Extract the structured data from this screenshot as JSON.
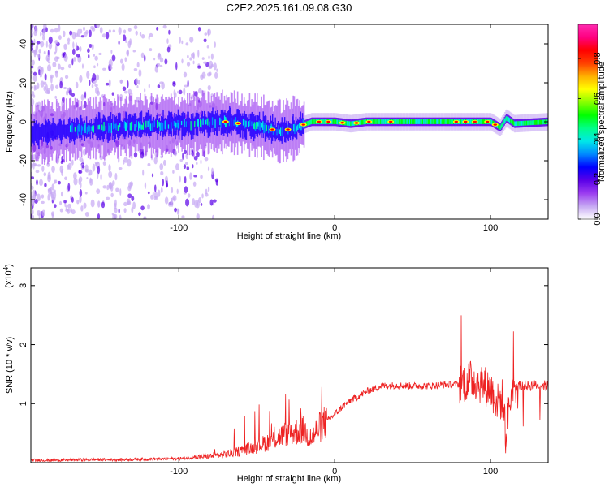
{
  "title": "C2E2.2025.161.09.08.G30",
  "chart_data": [
    {
      "type": "heatmap",
      "xlabel": "Height of straight line (km)",
      "ylabel": "Frequency (Hz)",
      "xlim": [
        -195,
        137
      ],
      "ylim": [
        -50,
        50
      ],
      "x_ticks": [
        {
          "value": -100,
          "label": "-100"
        },
        {
          "value": 0,
          "label": "0"
        },
        {
          "value": 100,
          "label": "100"
        }
      ],
      "y_ticks": [
        {
          "value": 40,
          "label": "40"
        },
        {
          "value": 20,
          "label": "20"
        },
        {
          "value": 0,
          "label": "0"
        },
        {
          "value": -20,
          "label": "-20"
        },
        {
          "value": -40,
          "label": "-40"
        }
      ],
      "colorbar": {
        "label": "Normalized spectral amplitude",
        "range": [
          0,
          0.97
        ],
        "ticks": [
          {
            "value": 0.0,
            "label": "0.0"
          },
          {
            "value": 0.2,
            "label": "0.2"
          },
          {
            "value": 0.4,
            "label": "0.4"
          },
          {
            "value": 0.6,
            "label": "0.6"
          },
          {
            "value": 0.8,
            "label": "0.8"
          }
        ],
        "colors": [
          "#ffffff",
          "#c6a8f3",
          "#9b3cf0",
          "#5a00e8",
          "#0000ff",
          "#0088ff",
          "#00e8e8",
          "#00ff88",
          "#00ff00",
          "#88ff00",
          "#ffff00",
          "#ffb000",
          "#ff4000",
          "#ff0000",
          "#ff0080",
          "#ff2bb0"
        ]
      },
      "ridge": {
        "x": [
          -195,
          -170,
          -150,
          -130,
          -110,
          -90,
          -70,
          -50,
          -35,
          -25,
          -15,
          -5,
          0,
          10,
          20,
          40,
          60,
          80,
          100,
          106,
          110,
          115,
          137
        ],
        "frequency": [
          -6,
          -4,
          -3,
          -2,
          -2,
          -1,
          0,
          -2,
          -5,
          -3,
          0,
          0,
          0,
          -1,
          0,
          0,
          0,
          0,
          0,
          -3,
          2,
          -1,
          0
        ]
      }
    },
    {
      "type": "line",
      "xlabel": "Height of straight line (km)",
      "ylabel": "SNR (10 * v/v)",
      "y_multiplier": "(x10^4)",
      "xlim": [
        -195,
        137
      ],
      "ylim": [
        0,
        3.3
      ],
      "x_ticks": [
        {
          "value": -100,
          "label": "-100"
        },
        {
          "value": 0,
          "label": "0"
        },
        {
          "value": 100,
          "label": "100"
        }
      ],
      "y_ticks": [
        {
          "value": 1,
          "label": "1"
        },
        {
          "value": 2,
          "label": "2"
        },
        {
          "value": 3,
          "label": "3"
        }
      ],
      "series": [
        {
          "color": "#ee2222",
          "x": [
            -195,
            -180,
            -160,
            -140,
            -120,
            -100,
            -80,
            -70,
            -60,
            -50,
            -40,
            -35,
            -30,
            -25,
            -20,
            -15,
            -10,
            -5,
            0,
            5,
            10,
            15,
            20,
            25,
            30,
            40,
            50,
            60,
            70,
            80,
            85,
            90,
            95,
            100,
            105,
            108,
            110,
            112,
            115,
            120,
            125,
            130,
            137
          ],
          "values": [
            0.04,
            0.04,
            0.05,
            0.05,
            0.06,
            0.07,
            0.11,
            0.14,
            0.2,
            0.28,
            0.38,
            0.45,
            0.5,
            0.52,
            0.55,
            0.4,
            0.6,
            0.7,
            0.82,
            0.95,
            1.05,
            1.12,
            1.2,
            1.25,
            1.3,
            1.31,
            1.3,
            1.3,
            1.32,
            1.33,
            1.38,
            1.4,
            1.32,
            1.25,
            1.0,
            1.1,
            0.4,
            1.0,
            1.3,
            1.31,
            1.3,
            1.32,
            1.3
          ]
        }
      ]
    }
  ]
}
